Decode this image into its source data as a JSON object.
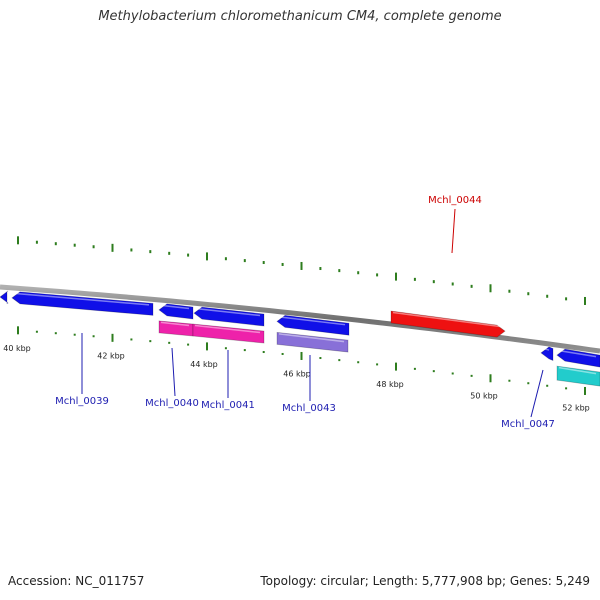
{
  "title": "Methylobacterium chloromethanicum CM4, complete genome",
  "footer": {
    "accession": "Accession: NC_011757",
    "summary": "Topology: circular; Length: 5,777,908 bp; Genes: 5,249"
  },
  "colors": {
    "backbone": "#808080",
    "tick": "#2e7d1e",
    "label_blue": "#1c1cb0",
    "label_red": "#cc0000",
    "gene_blue": "#1010e8",
    "gene_red": "#ee1111",
    "gene_pink": "#ee22aa",
    "gene_purple": "#8870d8",
    "gene_cyan": "#22cccc"
  },
  "scale_labels": [
    "40 kbp",
    "42 kbp",
    "44 kbp",
    "46 kbp",
    "48 kbp",
    "50 kbp",
    "52 kbp"
  ],
  "gene_labels": [
    {
      "text": "Mchl_0039",
      "color": "blue"
    },
    {
      "text": "Mchl_0040",
      "color": "blue"
    },
    {
      "text": "Mchl_0041",
      "color": "blue"
    },
    {
      "text": "Mchl_0043",
      "color": "blue"
    },
    {
      "text": "Mchl_0044",
      "color": "red"
    },
    {
      "text": "Mchl_0047",
      "color": "blue"
    }
  ]
}
